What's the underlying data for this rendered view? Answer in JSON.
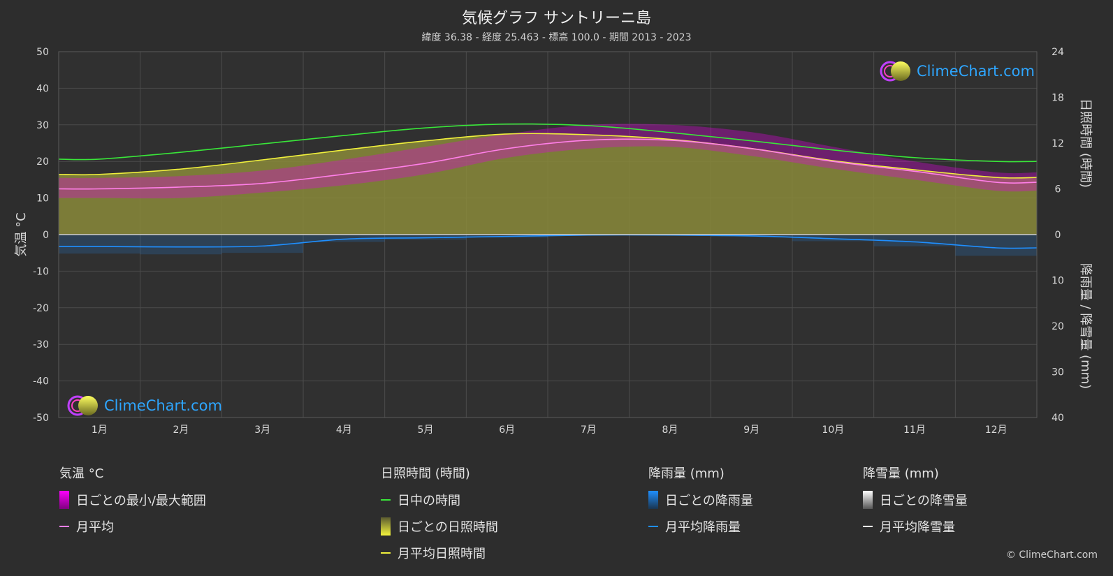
{
  "title": "気候グラフ サントリーニ島",
  "subtitle": "緯度 36.38 - 経度 25.463 - 標高 100.0 - 期間 2013 - 2023",
  "copyright": "© ClimeChart.com",
  "logo_text": "ClimeChart.com",
  "colors": {
    "background": "#2d2d2d",
    "temp_range": "#e000e0",
    "temp_avg": "#ff7fe8",
    "daylight": "#39e639",
    "sunshine_fill": "#8a8a3a",
    "sunshine_avg": "#f0f03c",
    "rain": "#1f8fff",
    "rain_avg": "#1f8fff",
    "snow": "#ffffff"
  },
  "legend": {
    "temp": {
      "heading": "気温 °C",
      "range": "日ごとの最小/最大範囲",
      "avg": "月平均"
    },
    "sun": {
      "heading": "日照時間 (時間)",
      "daylight": "日中の時間",
      "daily": "日ごとの日照時間",
      "avg": "月平均日照時間"
    },
    "rain": {
      "heading": "降雨量 (mm)",
      "daily": "日ごとの降雨量",
      "avg": "月平均降雨量"
    },
    "snow": {
      "heading": "降雪量 (mm)",
      "daily": "日ごとの降雪量",
      "avg": "月平均降雪量"
    }
  },
  "chart_data": {
    "type": "line",
    "categories": [
      "1月",
      "2月",
      "3月",
      "4月",
      "5月",
      "6月",
      "7月",
      "8月",
      "9月",
      "10月",
      "11月",
      "12月"
    ],
    "y_left": {
      "label": "気温 °C",
      "range": [
        -50,
        50
      ],
      "ticks": [
        50,
        40,
        30,
        20,
        10,
        0,
        -10,
        -20,
        -30,
        -40,
        -50
      ]
    },
    "y_right_top": {
      "label": "日照時間 (時間)",
      "range": [
        0,
        24
      ],
      "ticks": [
        24,
        18,
        12,
        6,
        0
      ]
    },
    "y_right_bottom": {
      "label": "降雨量 / 降雪量 (mm)",
      "range": [
        0,
        40
      ],
      "ticks": [
        0,
        10,
        20,
        30,
        40
      ]
    },
    "grid": true,
    "series": [
      {
        "name": "日中の時間",
        "unit": "hours",
        "values": [
          9.9,
          10.8,
          11.9,
          13.0,
          14.0,
          14.5,
          14.3,
          13.4,
          12.3,
          11.1,
          10.1,
          9.6
        ]
      },
      {
        "name": "月平均日照時間",
        "unit": "hours",
        "values": [
          7.9,
          8.6,
          9.8,
          11.1,
          12.3,
          13.2,
          13.1,
          12.5,
          11.3,
          9.7,
          8.5,
          7.5
        ]
      },
      {
        "name": "月平均",
        "unit": "°C",
        "values": [
          12.5,
          13.0,
          14.0,
          16.5,
          19.5,
          23.5,
          25.8,
          25.8,
          23.5,
          20.0,
          17.3,
          14.3
        ]
      },
      {
        "name": "月平均降雨量",
        "unit": "mm",
        "values": [
          2.6,
          2.7,
          2.5,
          1.0,
          0.7,
          0.4,
          0.1,
          0.1,
          0.3,
          0.9,
          1.6,
          2.9
        ]
      },
      {
        "name": "月平均降雪量",
        "unit": "mm",
        "values": [
          0,
          0,
          0,
          0,
          0,
          0,
          0,
          0,
          0,
          0,
          0,
          0
        ]
      }
    ],
    "temp_range_approx": {
      "min": [
        10.0,
        10.0,
        11.5,
        13.5,
        16.5,
        21.0,
        23.5,
        24.0,
        21.5,
        18.0,
        15.0,
        12.0
      ],
      "max": [
        15.5,
        16.0,
        17.5,
        20.5,
        24.0,
        27.5,
        30.0,
        30.0,
        28.0,
        24.0,
        20.0,
        17.0
      ]
    }
  }
}
